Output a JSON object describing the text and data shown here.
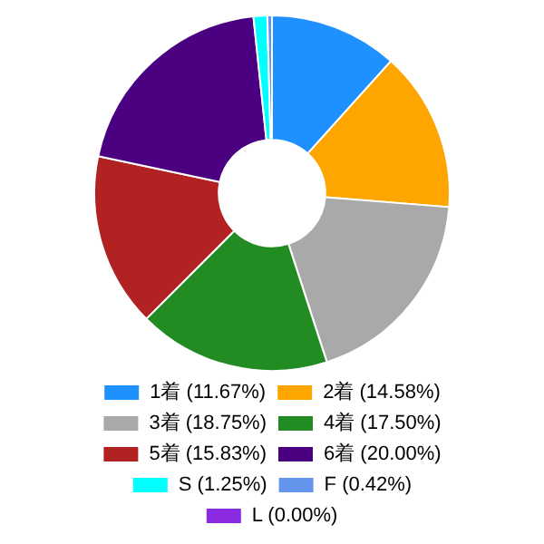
{
  "chart_data": {
    "type": "donut",
    "categories": [
      "1着 (11.67%)",
      "2着 (14.58%)",
      "3着 (18.75%)",
      "4着 (17.50%)",
      "5着 (15.83%)",
      "6着 (20.00%)",
      "S (1.25%)",
      "F (0.42%)",
      "L (0.00%)"
    ],
    "values": [
      11.67,
      14.58,
      18.75,
      17.5,
      15.83,
      20.0,
      1.25,
      0.42,
      0.0
    ],
    "colors": [
      "#1e90ff",
      "#ffa500",
      "#a9a9a9",
      "#228b22",
      "#b22222",
      "#4b0082",
      "#00ffff",
      "#6495ed",
      "#8a2be2"
    ],
    "legend": "bottom"
  }
}
